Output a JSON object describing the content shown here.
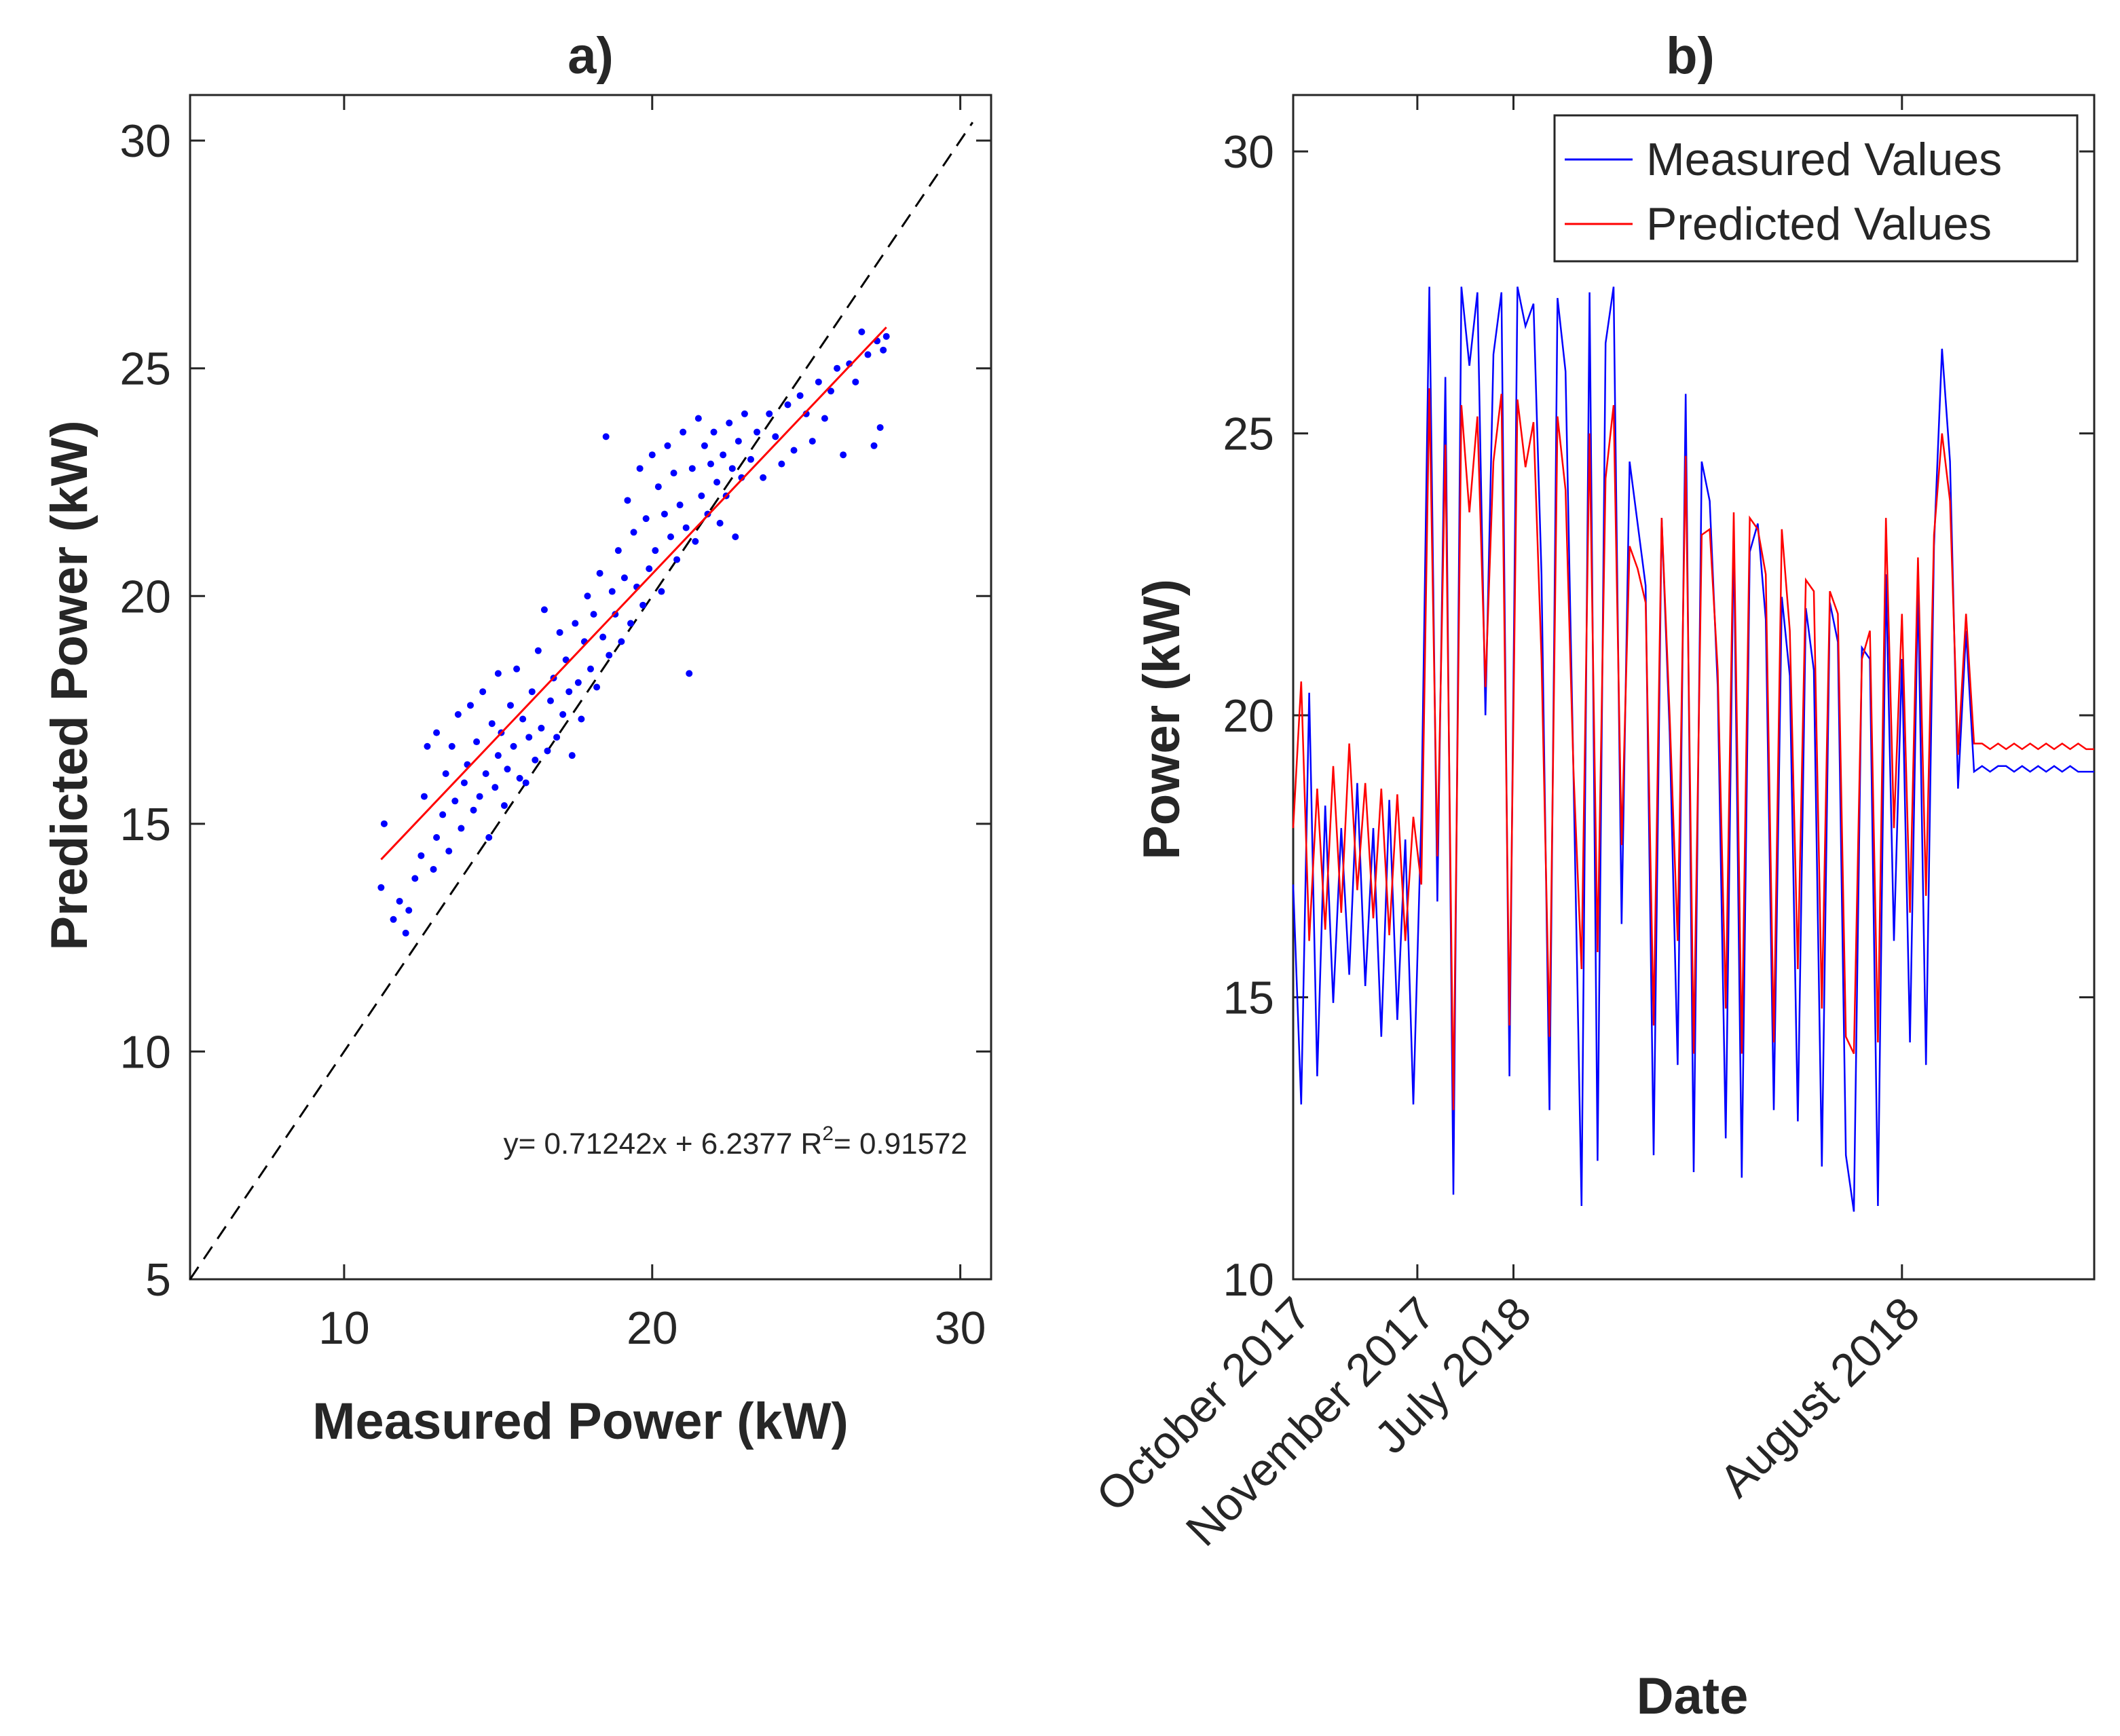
{
  "chart_data": [
    {
      "panel": "a)",
      "type": "scatter",
      "title": "a)",
      "xlabel": "Measured Power (kW)",
      "ylabel": "Predicted Power (kW)",
      "xlim": [
        5,
        31
      ],
      "ylim": [
        5,
        31
      ],
      "xticks": [
        10,
        20,
        30
      ],
      "yticks": [
        5,
        10,
        15,
        20,
        25,
        30
      ],
      "annotation": {
        "pre": "y= 0.71242x + 6.2377  R",
        "sup": "2",
        "post": "= 0.91572"
      },
      "fit": {
        "slope": 0.71242,
        "intercept": 6.2377,
        "x_range": [
          11.2,
          27.6
        ],
        "color": "#ff0000"
      },
      "identity_line": {
        "x_range": [
          5,
          30.4
        ],
        "style": "dashed",
        "color": "#000000"
      },
      "points_color": "#0000ff",
      "points": [
        [
          11.2,
          13.6
        ],
        [
          11.3,
          15.0
        ],
        [
          11.6,
          12.9
        ],
        [
          11.8,
          13.3
        ],
        [
          12.0,
          12.6
        ],
        [
          12.1,
          13.1
        ],
        [
          12.3,
          13.8
        ],
        [
          12.5,
          14.3
        ],
        [
          12.6,
          15.6
        ],
        [
          12.7,
          16.7
        ],
        [
          12.9,
          14.0
        ],
        [
          13.0,
          14.7
        ],
        [
          13.0,
          17.0
        ],
        [
          13.2,
          15.2
        ],
        [
          13.3,
          16.1
        ],
        [
          13.4,
          14.4
        ],
        [
          13.5,
          16.7
        ],
        [
          13.6,
          15.5
        ],
        [
          13.7,
          17.4
        ],
        [
          13.8,
          14.9
        ],
        [
          13.9,
          15.9
        ],
        [
          14.0,
          16.3
        ],
        [
          14.1,
          17.6
        ],
        [
          14.2,
          15.3
        ],
        [
          14.3,
          16.8
        ],
        [
          14.4,
          15.6
        ],
        [
          14.5,
          17.9
        ],
        [
          14.6,
          16.1
        ],
        [
          14.7,
          14.7
        ],
        [
          14.8,
          17.2
        ],
        [
          14.9,
          15.8
        ],
        [
          15.0,
          16.5
        ],
        [
          15.0,
          18.3
        ],
        [
          15.1,
          17.0
        ],
        [
          15.2,
          15.4
        ],
        [
          15.3,
          16.2
        ],
        [
          15.4,
          17.6
        ],
        [
          15.5,
          16.7
        ],
        [
          15.6,
          18.4
        ],
        [
          15.7,
          16.0
        ],
        [
          15.8,
          17.3
        ],
        [
          15.9,
          15.9
        ],
        [
          16.0,
          16.9
        ],
        [
          16.1,
          17.9
        ],
        [
          16.2,
          16.4
        ],
        [
          16.3,
          18.8
        ],
        [
          16.4,
          17.1
        ],
        [
          16.5,
          19.7
        ],
        [
          16.6,
          16.6
        ],
        [
          16.7,
          17.7
        ],
        [
          16.8,
          18.2
        ],
        [
          16.9,
          16.9
        ],
        [
          17.0,
          19.2
        ],
        [
          17.1,
          17.4
        ],
        [
          17.2,
          18.6
        ],
        [
          17.3,
          17.9
        ],
        [
          17.4,
          16.5
        ],
        [
          17.5,
          19.4
        ],
        [
          17.6,
          18.1
        ],
        [
          17.7,
          17.3
        ],
        [
          17.8,
          19.0
        ],
        [
          17.9,
          20.0
        ],
        [
          18.0,
          18.4
        ],
        [
          18.1,
          19.6
        ],
        [
          18.2,
          18.0
        ],
        [
          18.3,
          20.5
        ],
        [
          18.4,
          19.1
        ],
        [
          18.5,
          23.5
        ],
        [
          18.6,
          18.7
        ],
        [
          18.7,
          20.1
        ],
        [
          18.8,
          19.6
        ],
        [
          18.9,
          21.0
        ],
        [
          19.0,
          19.0
        ],
        [
          19.1,
          20.4
        ],
        [
          19.2,
          22.1
        ],
        [
          19.3,
          19.4
        ],
        [
          19.4,
          21.4
        ],
        [
          19.5,
          20.2
        ],
        [
          19.6,
          22.8
        ],
        [
          19.7,
          19.8
        ],
        [
          19.8,
          21.7
        ],
        [
          19.9,
          20.6
        ],
        [
          20.0,
          23.1
        ],
        [
          20.1,
          21.0
        ],
        [
          20.2,
          22.4
        ],
        [
          20.3,
          20.1
        ],
        [
          20.4,
          21.8
        ],
        [
          20.5,
          23.3
        ],
        [
          20.6,
          21.3
        ],
        [
          20.7,
          22.7
        ],
        [
          20.8,
          20.8
        ],
        [
          20.9,
          22.0
        ],
        [
          21.0,
          23.6
        ],
        [
          21.1,
          21.5
        ],
        [
          21.2,
          18.3
        ],
        [
          21.3,
          22.8
        ],
        [
          21.4,
          21.2
        ],
        [
          21.5,
          23.9
        ],
        [
          21.6,
          22.2
        ],
        [
          21.7,
          23.3
        ],
        [
          21.8,
          21.8
        ],
        [
          21.9,
          22.9
        ],
        [
          22.0,
          23.6
        ],
        [
          22.1,
          22.5
        ],
        [
          22.2,
          21.6
        ],
        [
          22.3,
          23.1
        ],
        [
          22.4,
          22.2
        ],
        [
          22.5,
          23.8
        ],
        [
          22.6,
          22.8
        ],
        [
          22.7,
          21.3
        ],
        [
          22.8,
          23.4
        ],
        [
          22.9,
          22.6
        ],
        [
          23.0,
          24.0
        ],
        [
          23.2,
          23.0
        ],
        [
          23.4,
          23.6
        ],
        [
          23.6,
          22.6
        ],
        [
          23.8,
          24.0
        ],
        [
          24.0,
          23.5
        ],
        [
          24.2,
          22.9
        ],
        [
          24.4,
          24.2
        ],
        [
          24.6,
          23.2
        ],
        [
          24.8,
          24.4
        ],
        [
          25.0,
          24.0
        ],
        [
          25.2,
          23.4
        ],
        [
          25.4,
          24.7
        ],
        [
          25.6,
          23.9
        ],
        [
          25.8,
          24.5
        ],
        [
          26.0,
          25.0
        ],
        [
          26.2,
          23.1
        ],
        [
          26.4,
          25.1
        ],
        [
          26.6,
          24.7
        ],
        [
          26.8,
          25.8
        ],
        [
          27.0,
          25.3
        ],
        [
          27.2,
          23.3
        ],
        [
          27.3,
          25.6
        ],
        [
          27.4,
          23.7
        ],
        [
          27.5,
          25.4
        ],
        [
          27.6,
          25.7
        ]
      ]
    },
    {
      "panel": "b)",
      "type": "line",
      "title": "b)",
      "xlabel": "Date",
      "ylabel": "Power (kW)",
      "ylim": [
        10,
        31
      ],
      "yticks": [
        10,
        15,
        20,
        25,
        30
      ],
      "xlim": [
        0,
        100
      ],
      "x_tick_positions": [
        0,
        15.5,
        27.5,
        76
      ],
      "x_tick_labels": [
        "October 2017",
        "November 2017",
        "July 2018",
        "August 2018"
      ],
      "legend_placement": "top-right",
      "series": [
        {
          "name": "Measured Values",
          "color": "#0000ff",
          "x": [
            0,
            1,
            2,
            3,
            4,
            5,
            6,
            7,
            8,
            9,
            10,
            11,
            12,
            13,
            14,
            15,
            16,
            17,
            18,
            19,
            20,
            21,
            22,
            23,
            24,
            25,
            26,
            27,
            28,
            29,
            30,
            31,
            32,
            33,
            34,
            35,
            36,
            37,
            38,
            39,
            40,
            41,
            42,
            43,
            44,
            45,
            46,
            47,
            48,
            49,
            50,
            51,
            52,
            53,
            54,
            55,
            56,
            57,
            58,
            59,
            60,
            61,
            62,
            63,
            64,
            65,
            66,
            67,
            68,
            69,
            70,
            71,
            72,
            73,
            74,
            75,
            76,
            77,
            78,
            79,
            80,
            81,
            82,
            83,
            84,
            85,
            86,
            87,
            88,
            89,
            90,
            91,
            92,
            93,
            94,
            95,
            96,
            97,
            98,
            99,
            100
          ],
          "y": [
            17.0,
            13.1,
            20.4,
            13.6,
            18.4,
            14.9,
            18.0,
            15.4,
            18.8,
            15.2,
            18.0,
            14.3,
            18.5,
            14.6,
            17.8,
            13.1,
            18.2,
            27.6,
            16.7,
            26.0,
            11.5,
            27.6,
            26.2,
            27.5,
            20.0,
            26.4,
            27.5,
            13.6,
            27.6,
            26.9,
            27.3,
            22.5,
            13.0,
            27.4,
            26.1,
            18.9,
            11.3,
            27.5,
            12.1,
            26.6,
            27.6,
            16.3,
            24.5,
            23.4,
            22.3,
            12.2,
            23.5,
            19.7,
            13.8,
            25.7,
            11.9,
            24.5,
            23.8,
            20.5,
            12.5,
            23.3,
            11.8,
            22.9,
            23.4,
            21.7,
            13.0,
            22.1,
            20.7,
            12.8,
            21.9,
            20.8,
            12.0,
            22.0,
            21.3,
            12.2,
            11.2,
            21.2,
            21.0,
            11.3,
            22.5,
            16.0,
            21.0,
            14.2,
            22.3,
            13.8,
            23.0,
            26.5,
            24.5,
            18.7,
            21.5,
            19.0,
            19.1,
            19.0,
            19.1,
            19.1,
            19.0,
            19.1,
            19.0,
            19.1,
            19.0,
            19.1,
            19.0,
            19.1,
            19.0,
            19.0,
            19.0
          ]
        },
        {
          "name": "Predicted Values",
          "color": "#ff0000",
          "x": [
            0,
            1,
            2,
            3,
            4,
            5,
            6,
            7,
            8,
            9,
            10,
            11,
            12,
            13,
            14,
            15,
            16,
            17,
            18,
            19,
            20,
            21,
            22,
            23,
            24,
            25,
            26,
            27,
            28,
            29,
            30,
            31,
            32,
            33,
            34,
            35,
            36,
            37,
            38,
            39,
            40,
            41,
            42,
            43,
            44,
            45,
            46,
            47,
            48,
            49,
            50,
            51,
            52,
            53,
            54,
            55,
            56,
            57,
            58,
            59,
            60,
            61,
            62,
            63,
            64,
            65,
            66,
            67,
            68,
            69,
            70,
            71,
            72,
            73,
            74,
            75,
            76,
            77,
            78,
            79,
            80,
            81,
            82,
            83,
            84,
            85,
            86,
            87,
            88,
            89,
            90,
            91,
            92,
            93,
            94,
            95,
            96,
            97,
            98,
            99,
            100
          ],
          "y": [
            18.0,
            20.6,
            16.0,
            18.7,
            16.2,
            19.1,
            16.5,
            19.5,
            16.9,
            18.8,
            16.4,
            18.7,
            16.1,
            18.6,
            16.0,
            18.2,
            17.0,
            25.8,
            17.5,
            24.8,
            13.0,
            25.5,
            23.6,
            25.3,
            20.5,
            24.5,
            25.7,
            14.5,
            25.6,
            24.4,
            25.2,
            21.0,
            14.3,
            25.3,
            24.0,
            19.0,
            15.5,
            25.0,
            15.8,
            24.2,
            25.5,
            17.7,
            23.0,
            22.6,
            22.0,
            14.5,
            23.5,
            20.0,
            16.0,
            24.6,
            14.0,
            23.2,
            23.3,
            20.8,
            14.8,
            23.6,
            14.0,
            23.5,
            23.3,
            22.5,
            14.2,
            23.3,
            21.5,
            15.5,
            22.4,
            22.2,
            14.8,
            22.2,
            21.8,
            14.3,
            14.0,
            21.0,
            21.5,
            14.2,
            23.5,
            18.0,
            21.8,
            16.5,
            22.8,
            16.8,
            23.2,
            25.0,
            23.8,
            19.3,
            21.8,
            19.5,
            19.5,
            19.4,
            19.5,
            19.4,
            19.5,
            19.4,
            19.5,
            19.4,
            19.5,
            19.4,
            19.5,
            19.4,
            19.5,
            19.4,
            19.4
          ]
        }
      ]
    }
  ]
}
